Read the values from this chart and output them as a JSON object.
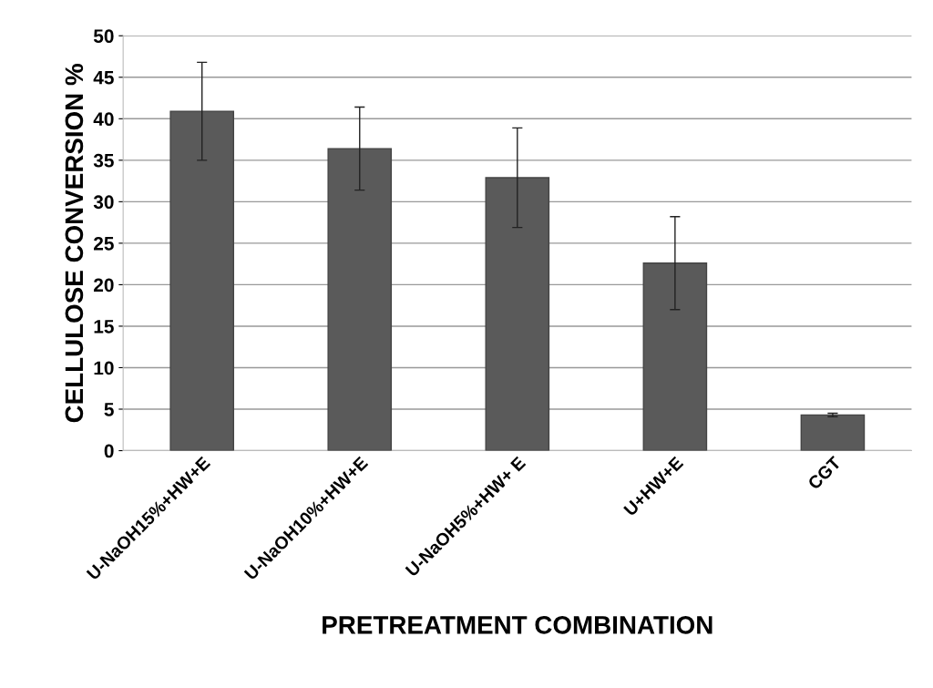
{
  "chart_data": {
    "type": "bar",
    "xlabel": "PRETREATMENT COMBINATION",
    "ylabel": "CELLULOSE CONVERSION %",
    "categories": [
      "U-NaOH15%+HW+E",
      "U-NaOH10%+HW+E",
      "U-NaOH5%+HW+ E",
      "U+HW+E",
      "CGT"
    ],
    "values": [
      40.9,
      36.4,
      32.9,
      22.6,
      4.3
    ],
    "errors": [
      5.9,
      5.0,
      6.0,
      5.6,
      0.2
    ],
    "color": "#5a5a5a",
    "ylim": [
      0,
      50
    ],
    "yticks": [
      0,
      5,
      10,
      15,
      20,
      25,
      30,
      35,
      40,
      45,
      50
    ],
    "grid": "y"
  }
}
